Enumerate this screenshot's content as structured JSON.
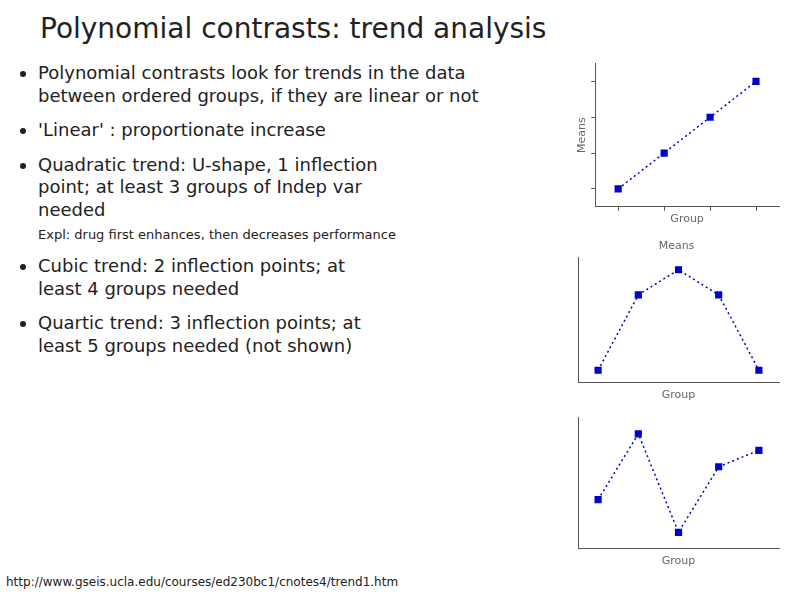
{
  "title": "Polynomial contrasts: trend analysis",
  "annotations": [
    [
      "Polynomial contrasts look for trends in the data\nbetween ordered groups, if they are linear or not"
    ],
    [
      "'Linear' : proportionate increase"
    ],
    [
      "Quadratic trend:  U-shape, 1 inflection\npoint; at least 3 groups of Indep var\nneeded",
      "Expl: drug first enhances, then decreases performance"
    ],
    [
      "Cubic trend: 2 inflection points; at\nleast 4 groups needed"
    ],
    [
      "Quartic trend: 3 inflection points; at\nleast 5 groups needed (not shown)"
    ]
  ],
  "footnote": "http://www.gseis.ucla.edu/courses/ed230bc1/cnotes4/trend1.htm",
  "chart_data": [
    {
      "type": "line",
      "x": [
        1,
        2,
        3,
        4
      ],
      "values": [
        1,
        2,
        3,
        4
      ],
      "color": "#0000cc",
      "marker": "square",
      "line_style": "dotted",
      "xlabel": "Group",
      "ylabel": "Means",
      "xlim": [
        0.5,
        4.5
      ],
      "ylim": [
        0.5,
        4.5
      ],
      "xticks": [
        1,
        2,
        3,
        4
      ],
      "yticks": [
        1,
        2,
        3,
        4
      ],
      "tick_labels": false,
      "grid": false
    },
    {
      "type": "line",
      "x": [
        1,
        2,
        3,
        4,
        5
      ],
      "values": [
        1,
        4,
        5,
        4,
        1
      ],
      "color": "#0000cc",
      "marker": "square",
      "line_style": "dotted",
      "title": "Means",
      "xlabel": "Group",
      "xlim": [
        0.5,
        5.5
      ],
      "ylim": [
        0.5,
        5.5
      ],
      "tick_labels": false,
      "grid": false
    },
    {
      "type": "line",
      "x": [
        1,
        2,
        3,
        4,
        5
      ],
      "values": [
        2,
        4,
        1,
        3,
        3.5
      ],
      "color": "#0000cc",
      "marker": "square",
      "line_style": "dotted",
      "xlabel": "Group",
      "xlim": [
        0.5,
        5.5
      ],
      "ylim": [
        0.5,
        4.5
      ],
      "tick_labels": false,
      "grid": false
    }
  ]
}
